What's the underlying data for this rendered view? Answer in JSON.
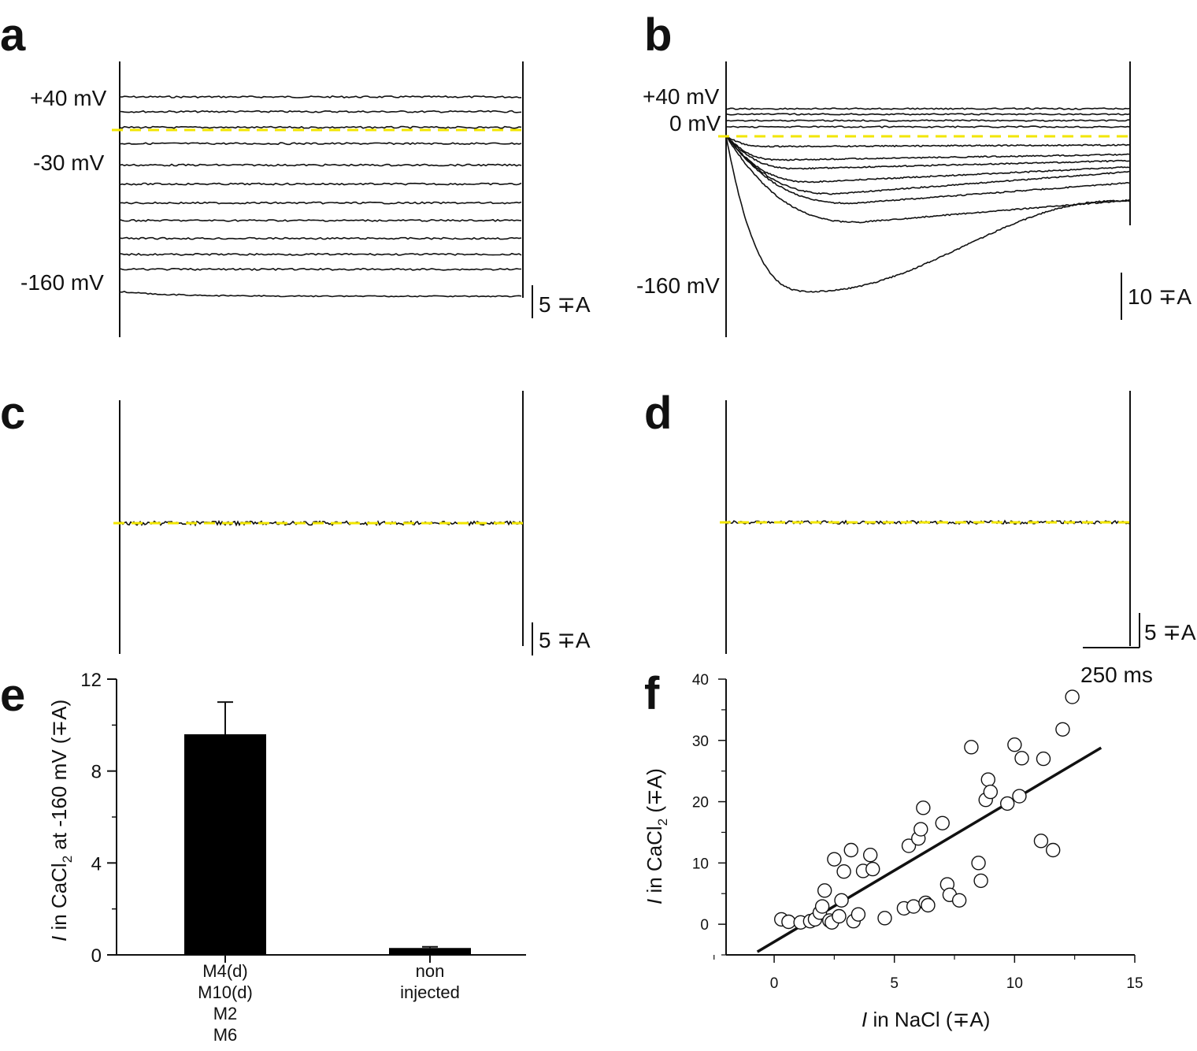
{
  "colors": {
    "trace": "#111111",
    "zero_line": "#f2e600",
    "bar": "#000000"
  },
  "panels": {
    "a": {
      "label": "a",
      "voltage_labels": [
        "+40 mV",
        "-30 mV",
        "-160 mV"
      ],
      "scale_bar": "5 ∓A",
      "traces_relative": [
        0,
        0.074,
        0.153,
        0.234,
        0.342,
        0.437,
        0.532,
        0.62,
        0.71,
        0.79,
        0.865,
        1.0
      ]
    },
    "b": {
      "label": "b",
      "voltage_labels": [
        "+40 mV",
        "0 mV",
        "-160 mV"
      ],
      "scale_bar": "10 ∓A"
    },
    "c": {
      "label": "c",
      "scale_bar": "5 ∓A"
    },
    "d": {
      "label": "d",
      "scale_bar": "5 ∓A",
      "time_bar": "250 ms"
    },
    "e": {
      "label": "e"
    },
    "f": {
      "label": "f"
    }
  },
  "chart_data": [
    {
      "panel": "e",
      "type": "bar",
      "categories": [
        "M4(d) M10(d) M2 M6",
        "non injected"
      ],
      "category_lines": [
        [
          "M4(d)",
          "M10(d)",
          "M2",
          "M6"
        ],
        [
          "non",
          "injected"
        ]
      ],
      "values": [
        9.6,
        0.3
      ],
      "errors": [
        1.4,
        0.05
      ],
      "ylabel": "I in CaCl2 at -160 mV (∓A)",
      "ylabel_parts": {
        "italic": "I",
        "pre": " in CaCl",
        "sub": "2",
        "post": " at -160 mV (∓A)"
      },
      "ylim": [
        0,
        12
      ],
      "yticks": [
        0,
        4,
        8,
        12
      ]
    },
    {
      "panel": "f",
      "type": "scatter",
      "xlabel": "I in NaCl (∓A)",
      "xlabel_parts": {
        "italic": "I",
        "rest": " in NaCl (∓A)"
      },
      "ylabel": "I in CaCl2 (∓A)",
      "ylabel_parts": {
        "italic": "I",
        "pre": " in CaCl",
        "sub": "2",
        "post": " (∓A)"
      },
      "xlim": [
        -2,
        15
      ],
      "ylim": [
        -5,
        40
      ],
      "xticks": [
        0,
        5,
        10,
        15
      ],
      "yticks": [
        0,
        10,
        20,
        30,
        40
      ],
      "points": [
        [
          0.3,
          0.8
        ],
        [
          0.6,
          0.4
        ],
        [
          1.1,
          0.3
        ],
        [
          1.5,
          0.5
        ],
        [
          1.7,
          0.8
        ],
        [
          1.9,
          1.9
        ],
        [
          2.0,
          2.9
        ],
        [
          2.1,
          5.5
        ],
        [
          2.3,
          0.6
        ],
        [
          2.4,
          0.3
        ],
        [
          2.5,
          10.6
        ],
        [
          2.7,
          1.3
        ],
        [
          2.8,
          3.9
        ],
        [
          2.9,
          8.6
        ],
        [
          3.2,
          12.1
        ],
        [
          3.3,
          0.5
        ],
        [
          3.5,
          1.6
        ],
        [
          3.7,
          8.7
        ],
        [
          4.0,
          11.3
        ],
        [
          4.1,
          9.0
        ],
        [
          4.6,
          1.0
        ],
        [
          5.4,
          2.6
        ],
        [
          5.6,
          12.8
        ],
        [
          5.8,
          2.9
        ],
        [
          6.0,
          14.0
        ],
        [
          6.1,
          15.5
        ],
        [
          6.2,
          19.0
        ],
        [
          6.3,
          3.5
        ],
        [
          6.4,
          3.1
        ],
        [
          7.0,
          16.5
        ],
        [
          7.2,
          6.5
        ],
        [
          7.3,
          4.8
        ],
        [
          7.7,
          3.9
        ],
        [
          8.2,
          28.9
        ],
        [
          8.5,
          10.0
        ],
        [
          8.6,
          7.1
        ],
        [
          8.8,
          20.3
        ],
        [
          8.9,
          23.6
        ],
        [
          9.0,
          21.6
        ],
        [
          9.7,
          19.7
        ],
        [
          10.0,
          29.3
        ],
        [
          10.2,
          20.9
        ],
        [
          10.3,
          27.1
        ],
        [
          11.1,
          13.6
        ],
        [
          11.2,
          27.0
        ],
        [
          11.6,
          12.1
        ],
        [
          12.0,
          31.8
        ],
        [
          12.4,
          37.1
        ]
      ],
      "fit_line": {
        "x": [
          -0.7,
          13.6
        ],
        "y": [
          -4.5,
          28.8
        ]
      }
    }
  ]
}
